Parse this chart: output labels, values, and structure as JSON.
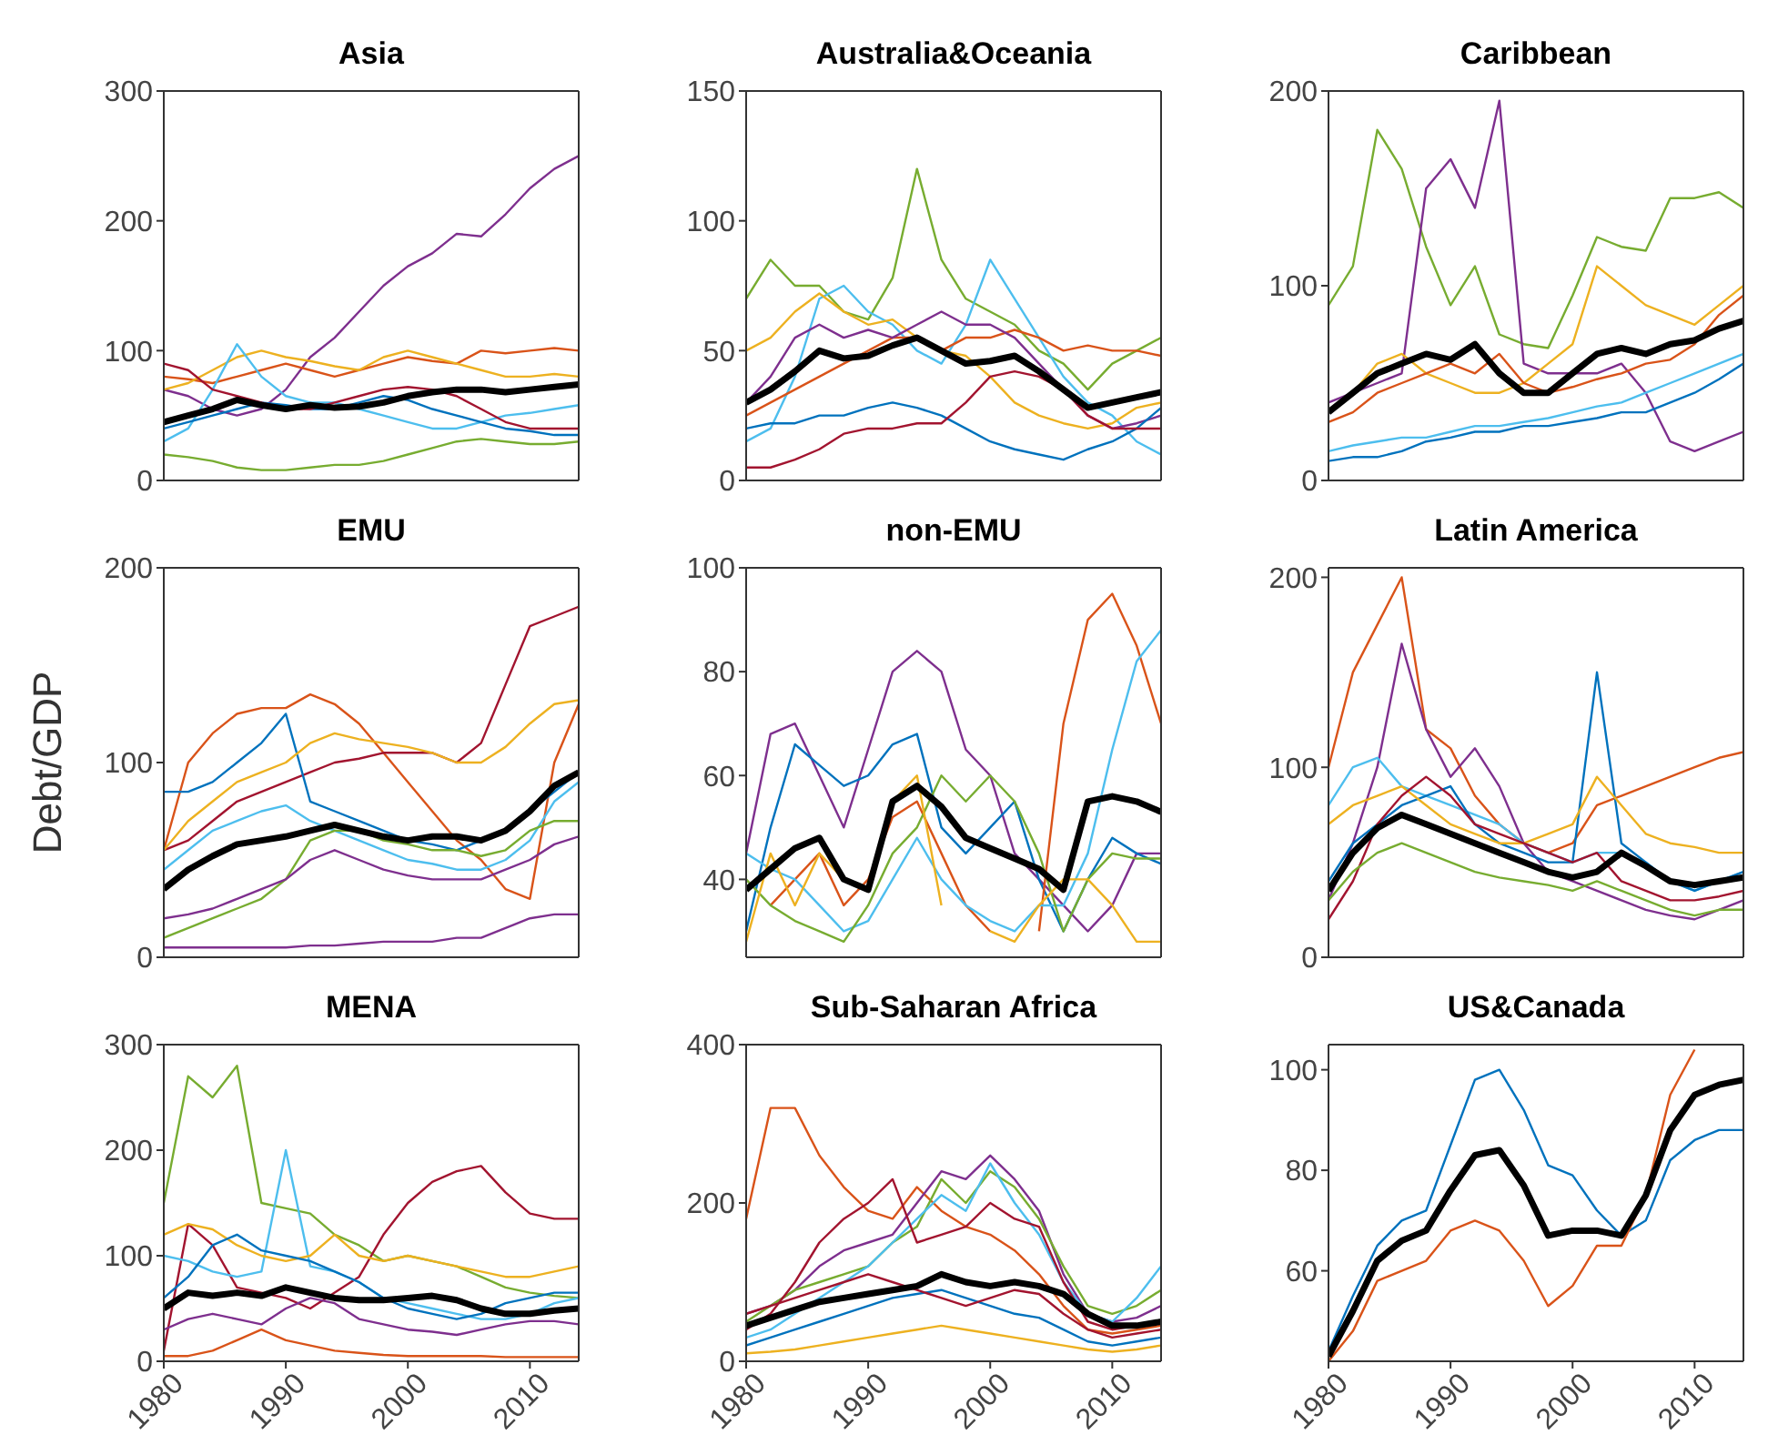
{
  "chart_data": [
    {
      "type": "line",
      "title": "Asia",
      "x": [
        1980,
        1982,
        1984,
        1986,
        1988,
        1990,
        1992,
        1994,
        1996,
        1998,
        2000,
        2002,
        2004,
        2006,
        2008,
        2010,
        2012,
        2014
      ],
      "xlim": [
        1980,
        2014
      ],
      "xticks": [
        1980,
        1990,
        2000,
        2010
      ],
      "ylim": [
        0,
        300
      ],
      "yticks": [
        0,
        100,
        200,
        300
      ],
      "tick_labels": "y",
      "grid": false,
      "legend": false,
      "series": [
        {
          "color": "#7e2f8e",
          "values": [
            70,
            65,
            55,
            50,
            55,
            70,
            95,
            110,
            130,
            150,
            165,
            175,
            190,
            188,
            205,
            225,
            240,
            250
          ]
        },
        {
          "color": "#d95319",
          "values": [
            80,
            78,
            75,
            80,
            85,
            90,
            85,
            80,
            85,
            90,
            95,
            92,
            90,
            100,
            98,
            100,
            102,
            100
          ]
        },
        {
          "color": "#edb120",
          "values": [
            70,
            75,
            85,
            95,
            100,
            95,
            92,
            88,
            85,
            95,
            100,
            95,
            90,
            85,
            80,
            80,
            82,
            80
          ]
        },
        {
          "color": "#77ac30",
          "values": [
            20,
            18,
            15,
            10,
            8,
            8,
            10,
            12,
            12,
            15,
            20,
            25,
            30,
            32,
            30,
            28,
            28,
            30
          ]
        },
        {
          "color": "#4dbeee",
          "values": [
            30,
            40,
            70,
            105,
            80,
            65,
            60,
            60,
            55,
            50,
            45,
            40,
            40,
            45,
            50,
            52,
            55,
            58
          ]
        },
        {
          "color": "#0072bd",
          "values": [
            40,
            45,
            50,
            55,
            60,
            58,
            55,
            55,
            60,
            65,
            62,
            55,
            50,
            45,
            40,
            38,
            35,
            35
          ]
        },
        {
          "color": "#a2142f",
          "values": [
            90,
            85,
            70,
            65,
            60,
            55,
            55,
            60,
            65,
            70,
            72,
            70,
            65,
            55,
            45,
            40,
            40,
            40
          ]
        },
        {
          "color": "#000000",
          "values": [
            45,
            50,
            55,
            62,
            58,
            55,
            58,
            56,
            57,
            60,
            65,
            68,
            70,
            70,
            68,
            70,
            72,
            74
          ]
        }
      ]
    },
    {
      "type": "line",
      "title": "Australia&Oceania",
      "x": [
        1980,
        1982,
        1984,
        1986,
        1988,
        1990,
        1992,
        1994,
        1996,
        1998,
        2000,
        2002,
        2004,
        2006,
        2008,
        2010,
        2012,
        2014
      ],
      "xlim": [
        1980,
        2014
      ],
      "xticks": [
        1980,
        1990,
        2000,
        2010
      ],
      "ylim": [
        0,
        150
      ],
      "yticks": [
        0,
        50,
        100,
        150
      ],
      "tick_labels": "y",
      "grid": false,
      "legend": false,
      "series": [
        {
          "color": "#77ac30",
          "values": [
            70,
            85,
            75,
            75,
            65,
            62,
            78,
            120,
            85,
            70,
            65,
            60,
            50,
            45,
            35,
            45,
            50,
            55
          ]
        },
        {
          "color": "#4dbeee",
          "values": [
            15,
            20,
            40,
            70,
            75,
            65,
            60,
            50,
            45,
            60,
            85,
            70,
            55,
            40,
            30,
            25,
            15,
            10
          ]
        },
        {
          "color": "#edb120",
          "values": [
            50,
            55,
            65,
            72,
            65,
            60,
            62,
            55,
            50,
            48,
            40,
            30,
            25,
            22,
            20,
            22,
            28,
            30
          ]
        },
        {
          "color": "#d95319",
          "values": [
            25,
            30,
            35,
            40,
            45,
            50,
            55,
            55,
            50,
            55,
            55,
            58,
            55,
            50,
            52,
            50,
            50,
            48
          ]
        },
        {
          "color": "#7e2f8e",
          "values": [
            30,
            40,
            55,
            60,
            55,
            58,
            55,
            60,
            65,
            60,
            60,
            55,
            45,
            35,
            25,
            20,
            22,
            25
          ]
        },
        {
          "color": "#0072bd",
          "values": [
            20,
            22,
            22,
            25,
            25,
            28,
            30,
            28,
            25,
            20,
            15,
            12,
            10,
            8,
            12,
            15,
            20,
            28
          ]
        },
        {
          "color": "#a2142f",
          "values": [
            5,
            5,
            8,
            12,
            18,
            20,
            20,
            22,
            22,
            30,
            40,
            42,
            40,
            35,
            25,
            20,
            20,
            20
          ]
        },
        {
          "color": "#000000",
          "values": [
            30,
            35,
            42,
            50,
            47,
            48,
            52,
            55,
            50,
            45,
            46,
            48,
            42,
            35,
            28,
            30,
            32,
            34
          ]
        }
      ]
    },
    {
      "type": "line",
      "title": "Caribbean",
      "x": [
        1980,
        1982,
        1984,
        1986,
        1988,
        1990,
        1992,
        1994,
        1996,
        1998,
        2000,
        2002,
        2004,
        2006,
        2008,
        2010,
        2012,
        2014
      ],
      "xlim": [
        1980,
        2014
      ],
      "xticks": [
        1980,
        1990,
        2000,
        2010
      ],
      "ylim": [
        0,
        200
      ],
      "yticks": [
        0,
        100,
        200
      ],
      "tick_labels": "y",
      "grid": false,
      "legend": false,
      "series": [
        {
          "color": "#77ac30",
          "values": [
            90,
            110,
            180,
            160,
            120,
            90,
            110,
            75,
            70,
            68,
            95,
            125,
            120,
            118,
            145,
            145,
            148,
            140
          ]
        },
        {
          "color": "#7e2f8e",
          "values": [
            40,
            45,
            50,
            55,
            150,
            165,
            140,
            195,
            60,
            55,
            55,
            55,
            60,
            45,
            20,
            15,
            20,
            25
          ]
        },
        {
          "color": "#edb120",
          "values": [
            35,
            45,
            60,
            65,
            55,
            50,
            45,
            45,
            50,
            60,
            70,
            110,
            100,
            90,
            85,
            80,
            90,
            100
          ]
        },
        {
          "color": "#d95319",
          "values": [
            30,
            35,
            45,
            50,
            55,
            60,
            55,
            65,
            50,
            45,
            48,
            52,
            55,
            60,
            62,
            70,
            85,
            95
          ]
        },
        {
          "color": "#4dbeee",
          "values": [
            15,
            18,
            20,
            22,
            22,
            25,
            28,
            28,
            30,
            32,
            35,
            38,
            40,
            45,
            50,
            55,
            60,
            65
          ]
        },
        {
          "color": "#0072bd",
          "values": [
            10,
            12,
            12,
            15,
            20,
            22,
            25,
            25,
            28,
            28,
            30,
            32,
            35,
            35,
            40,
            45,
            52,
            60
          ]
        },
        {
          "color": "#000000",
          "values": [
            35,
            45,
            55,
            60,
            65,
            62,
            70,
            55,
            45,
            45,
            55,
            65,
            68,
            65,
            70,
            72,
            78,
            82
          ]
        }
      ]
    },
    {
      "type": "line",
      "title": "EMU",
      "ylabel": "Debt/GDP",
      "x": [
        1980,
        1982,
        1984,
        1986,
        1988,
        1990,
        1992,
        1994,
        1996,
        1998,
        2000,
        2002,
        2004,
        2006,
        2008,
        2010,
        2012,
        2014
      ],
      "xlim": [
        1980,
        2014
      ],
      "xticks": [
        1980,
        1990,
        2000,
        2010
      ],
      "ylim": [
        0,
        200
      ],
      "yticks": [
        0,
        100,
        200
      ],
      "tick_labels": "y",
      "grid": false,
      "legend": false,
      "series": [
        {
          "color": "#d95319",
          "values": [
            55,
            100,
            115,
            125,
            128,
            128,
            135,
            130,
            120,
            105,
            90,
            75,
            60,
            50,
            35,
            30,
            100,
            130
          ]
        },
        {
          "color": "#a2142f",
          "values": [
            55,
            60,
            70,
            80,
            85,
            90,
            95,
            100,
            102,
            105,
            105,
            105,
            100,
            110,
            140,
            170,
            175,
            180
          ]
        },
        {
          "color": "#0072bd",
          "values": [
            85,
            85,
            90,
            100,
            110,
            125,
            80,
            75,
            70,
            65,
            60,
            58,
            55,
            60,
            65,
            75,
            85,
            95
          ]
        },
        {
          "color": "#edb120",
          "values": [
            55,
            70,
            80,
            90,
            95,
            100,
            110,
            115,
            112,
            110,
            108,
            105,
            100,
            100,
            108,
            120,
            130,
            132
          ]
        },
        {
          "color": "#4dbeee",
          "values": [
            45,
            55,
            65,
            70,
            75,
            78,
            70,
            65,
            60,
            55,
            50,
            48,
            45,
            45,
            50,
            60,
            80,
            90
          ]
        },
        {
          "color": "#77ac30",
          "values": [
            10,
            15,
            20,
            25,
            30,
            40,
            60,
            65,
            65,
            60,
            58,
            55,
            55,
            52,
            55,
            65,
            70,
            70
          ]
        },
        {
          "color": "#7e2f8e",
          "values": [
            5,
            5,
            5,
            5,
            5,
            5,
            6,
            6,
            7,
            8,
            8,
            8,
            10,
            10,
            15,
            20,
            22,
            22
          ]
        },
        {
          "color": "#7e2f8e",
          "values": [
            20,
            22,
            25,
            30,
            35,
            40,
            50,
            55,
            50,
            45,
            42,
            40,
            40,
            40,
            45,
            50,
            58,
            62
          ]
        },
        {
          "color": "#000000",
          "values": [
            35,
            45,
            52,
            58,
            60,
            62,
            65,
            68,
            65,
            62,
            60,
            62,
            62,
            60,
            65,
            75,
            88,
            95
          ]
        }
      ]
    },
    {
      "type": "line",
      "title": "non-EMU",
      "x": [
        1980,
        1982,
        1984,
        1986,
        1988,
        1990,
        1992,
        1994,
        1996,
        1998,
        2000,
        2002,
        2004,
        2006,
        2008,
        2010,
        2012,
        2014
      ],
      "xlim": [
        1980,
        2014
      ],
      "xticks": [
        1980,
        1990,
        2000,
        2010
      ],
      "ylim": [
        25,
        100
      ],
      "yticks": [
        40,
        60,
        80,
        100
      ],
      "tick_labels": "y",
      "grid": false,
      "legend": false,
      "series": [
        {
          "color": "#7e2f8e",
          "values": [
            45,
            68,
            70,
            60,
            50,
            65,
            80,
            84,
            80,
            65,
            60,
            45,
            40,
            35,
            30,
            35,
            45,
            45
          ]
        },
        {
          "color": "#0072bd",
          "values": [
            30,
            50,
            66,
            62,
            58,
            60,
            66,
            68,
            50,
            45,
            50,
            55,
            40,
            30,
            40,
            48,
            45,
            43
          ]
        },
        {
          "color": "#d95319",
          "values": [
            null,
            35,
            40,
            45,
            35,
            40,
            52,
            55,
            45,
            35,
            30,
            null,
            30,
            70,
            90,
            95,
            85,
            70
          ]
        },
        {
          "color": "#4dbeee",
          "values": [
            45,
            42,
            40,
            35,
            30,
            32,
            40,
            48,
            40,
            35,
            32,
            30,
            35,
            35,
            45,
            65,
            82,
            88
          ]
        },
        {
          "color": "#77ac30",
          "values": [
            40,
            35,
            32,
            30,
            28,
            35,
            45,
            50,
            60,
            55,
            60,
            55,
            45,
            30,
            40,
            45,
            44,
            44
          ]
        },
        {
          "color": "#edb120",
          "values": [
            28,
            45,
            35,
            45,
            40,
            38,
            55,
            60,
            35,
            null,
            30,
            28,
            35,
            40,
            40,
            35,
            28,
            28
          ]
        },
        {
          "color": "#000000",
          "values": [
            38,
            42,
            46,
            48,
            40,
            38,
            55,
            58,
            54,
            48,
            46,
            44,
            42,
            38,
            55,
            56,
            55,
            53
          ]
        }
      ]
    },
    {
      "type": "line",
      "title": "Latin America",
      "x": [
        1980,
        1982,
        1984,
        1986,
        1988,
        1990,
        1992,
        1994,
        1996,
        1998,
        2000,
        2002,
        2004,
        2006,
        2008,
        2010,
        2012,
        2014
      ],
      "xlim": [
        1980,
        2014
      ],
      "xticks": [
        1980,
        1990,
        2000,
        2010
      ],
      "ylim": [
        0,
        205
      ],
      "yticks": [
        0,
        100,
        200
      ],
      "tick_labels": "y",
      "grid": false,
      "legend": false,
      "series": [
        {
          "color": "#d95319",
          "values": [
            100,
            150,
            175,
            200,
            120,
            110,
            85,
            70,
            60,
            55,
            60,
            80,
            85,
            90,
            95,
            100,
            105,
            108
          ]
        },
        {
          "color": "#7e2f8e",
          "values": [
            30,
            60,
            100,
            165,
            120,
            95,
            110,
            90,
            60,
            45,
            40,
            35,
            30,
            25,
            22,
            20,
            25,
            30
          ]
        },
        {
          "color": "#4dbeee",
          "values": [
            80,
            100,
            105,
            90,
            85,
            80,
            75,
            70,
            60,
            55,
            50,
            55,
            55,
            50,
            40,
            35,
            40,
            45
          ]
        },
        {
          "color": "#0072bd",
          "values": [
            40,
            60,
            70,
            80,
            85,
            90,
            70,
            60,
            55,
            50,
            50,
            150,
            60,
            50,
            40,
            35,
            40,
            45
          ]
        },
        {
          "color": "#edb120",
          "values": [
            70,
            80,
            85,
            90,
            80,
            70,
            65,
            60,
            60,
            65,
            70,
            95,
            80,
            65,
            60,
            58,
            55,
            55
          ]
        },
        {
          "color": "#a2142f",
          "values": [
            20,
            40,
            70,
            85,
            95,
            85,
            70,
            65,
            60,
            55,
            50,
            55,
            40,
            35,
            30,
            30,
            32,
            35
          ]
        },
        {
          "color": "#77ac30",
          "values": [
            30,
            45,
            55,
            60,
            55,
            50,
            45,
            42,
            40,
            38,
            35,
            40,
            35,
            30,
            25,
            22,
            25,
            25
          ]
        },
        {
          "color": "#000000",
          "values": [
            35,
            55,
            68,
            75,
            70,
            65,
            60,
            55,
            50,
            45,
            42,
            45,
            55,
            48,
            40,
            38,
            40,
            42
          ]
        }
      ]
    },
    {
      "type": "line",
      "title": "MENA",
      "x": [
        1980,
        1982,
        1984,
        1986,
        1988,
        1990,
        1992,
        1994,
        1996,
        1998,
        2000,
        2002,
        2004,
        2006,
        2008,
        2010,
        2012,
        2014
      ],
      "xlim": [
        1980,
        2014
      ],
      "xticks": [
        1980,
        1990,
        2000,
        2010
      ],
      "ylim": [
        0,
        300
      ],
      "yticks": [
        0,
        100,
        200,
        300
      ],
      "grid": false,
      "legend": false,
      "series": [
        {
          "color": "#77ac30",
          "values": [
            150,
            270,
            250,
            280,
            150,
            145,
            140,
            120,
            110,
            95,
            100,
            95,
            90,
            80,
            70,
            65,
            62,
            60
          ]
        },
        {
          "color": "#a2142f",
          "values": [
            10,
            130,
            110,
            70,
            65,
            60,
            50,
            65,
            80,
            120,
            150,
            170,
            180,
            185,
            160,
            140,
            135,
            135
          ]
        },
        {
          "color": "#4dbeee",
          "values": [
            100,
            95,
            85,
            80,
            85,
            200,
            90,
            85,
            75,
            60,
            55,
            50,
            45,
            40,
            40,
            45,
            55,
            60
          ]
        },
        {
          "color": "#edb120",
          "values": [
            120,
            130,
            125,
            110,
            100,
            95,
            100,
            120,
            100,
            95,
            100,
            95,
            90,
            85,
            80,
            80,
            85,
            90
          ]
        },
        {
          "color": "#0072bd",
          "values": [
            60,
            80,
            110,
            120,
            105,
            100,
            95,
            85,
            75,
            60,
            50,
            45,
            40,
            45,
            55,
            60,
            65,
            65
          ]
        },
        {
          "color": "#7e2f8e",
          "values": [
            30,
            40,
            45,
            40,
            35,
            50,
            60,
            55,
            40,
            35,
            30,
            28,
            25,
            30,
            35,
            38,
            38,
            35
          ]
        },
        {
          "color": "#d95319",
          "values": [
            5,
            5,
            10,
            20,
            30,
            20,
            15,
            10,
            8,
            6,
            5,
            5,
            5,
            5,
            4,
            4,
            4,
            4
          ]
        },
        {
          "color": "#000000",
          "values": [
            50,
            65,
            62,
            65,
            62,
            70,
            65,
            60,
            58,
            58,
            60,
            62,
            58,
            50,
            45,
            45,
            48,
            50
          ]
        }
      ]
    },
    {
      "type": "line",
      "title": "Sub-Saharan Africa",
      "x": [
        1980,
        1982,
        1984,
        1986,
        1988,
        1990,
        1992,
        1994,
        1996,
        1998,
        2000,
        2002,
        2004,
        2006,
        2008,
        2010,
        2012,
        2014
      ],
      "xlim": [
        1980,
        2014
      ],
      "xticks": [
        1980,
        1990,
        2000,
        2010
      ],
      "ylim": [
        0,
        400
      ],
      "yticks": [
        0,
        200,
        400
      ],
      "grid": false,
      "legend": false,
      "series": [
        {
          "color": "#d95319",
          "values": [
            180,
            320,
            320,
            260,
            220,
            190,
            180,
            220,
            190,
            170,
            160,
            140,
            110,
            70,
            40,
            35,
            40,
            45
          ]
        },
        {
          "color": "#7e2f8e",
          "values": [
            60,
            70,
            90,
            120,
            140,
            150,
            160,
            200,
            240,
            230,
            260,
            230,
            190,
            110,
            60,
            50,
            55,
            70
          ]
        },
        {
          "color": "#77ac30",
          "values": [
            50,
            70,
            90,
            100,
            110,
            120,
            150,
            170,
            230,
            200,
            240,
            220,
            180,
            120,
            70,
            60,
            70,
            90
          ]
        },
        {
          "color": "#4dbeee",
          "values": [
            30,
            40,
            60,
            80,
            100,
            120,
            150,
            180,
            210,
            190,
            250,
            200,
            160,
            100,
            60,
            50,
            80,
            120
          ]
        },
        {
          "color": "#a2142f",
          "values": [
            40,
            60,
            100,
            150,
            180,
            200,
            230,
            150,
            160,
            170,
            200,
            180,
            170,
            100,
            50,
            40,
            45,
            50
          ]
        },
        {
          "color": "#0072bd",
          "values": [
            20,
            30,
            40,
            50,
            60,
            70,
            80,
            85,
            90,
            80,
            70,
            60,
            55,
            40,
            25,
            20,
            25,
            30
          ]
        },
        {
          "color": "#edb120",
          "values": [
            10,
            12,
            15,
            20,
            25,
            30,
            35,
            40,
            45,
            40,
            35,
            30,
            25,
            20,
            15,
            12,
            15,
            20
          ]
        },
        {
          "color": "#a2142f",
          "values": [
            60,
            70,
            80,
            90,
            100,
            110,
            100,
            90,
            80,
            70,
            80,
            90,
            85,
            60,
            40,
            30,
            35,
            40
          ]
        },
        {
          "color": "#000000",
          "values": [
            45,
            55,
            65,
            75,
            80,
            85,
            90,
            95,
            110,
            100,
            95,
            100,
            95,
            85,
            60,
            45,
            45,
            50
          ]
        }
      ]
    },
    {
      "type": "line",
      "title": "US&Canada",
      "x": [
        1980,
        1982,
        1984,
        1986,
        1988,
        1990,
        1992,
        1994,
        1996,
        1998,
        2000,
        2002,
        2004,
        2006,
        2008,
        2010,
        2012,
        2014
      ],
      "xlim": [
        1980,
        2014
      ],
      "xticks": [
        1980,
        1990,
        2000,
        2010
      ],
      "ylim": [
        42,
        105
      ],
      "yticks": [
        60,
        80,
        100
      ],
      "grid": false,
      "legend": false,
      "series": [
        {
          "color": "#0072bd",
          "values": [
            44,
            55,
            65,
            70,
            72,
            85,
            98,
            100,
            92,
            81,
            79,
            72,
            67,
            70,
            82,
            86,
            88,
            88
          ]
        },
        {
          "color": "#d95319",
          "values": [
            42,
            48,
            58,
            60,
            62,
            68,
            70,
            68,
            62,
            53,
            57,
            65,
            65,
            75,
            95,
            104,
            null,
            null
          ]
        },
        {
          "color": "#000000",
          "values": [
            43,
            52,
            62,
            66,
            68,
            76,
            83,
            84,
            77,
            67,
            68,
            68,
            67,
            75,
            88,
            95,
            97,
            98
          ]
        }
      ]
    }
  ]
}
